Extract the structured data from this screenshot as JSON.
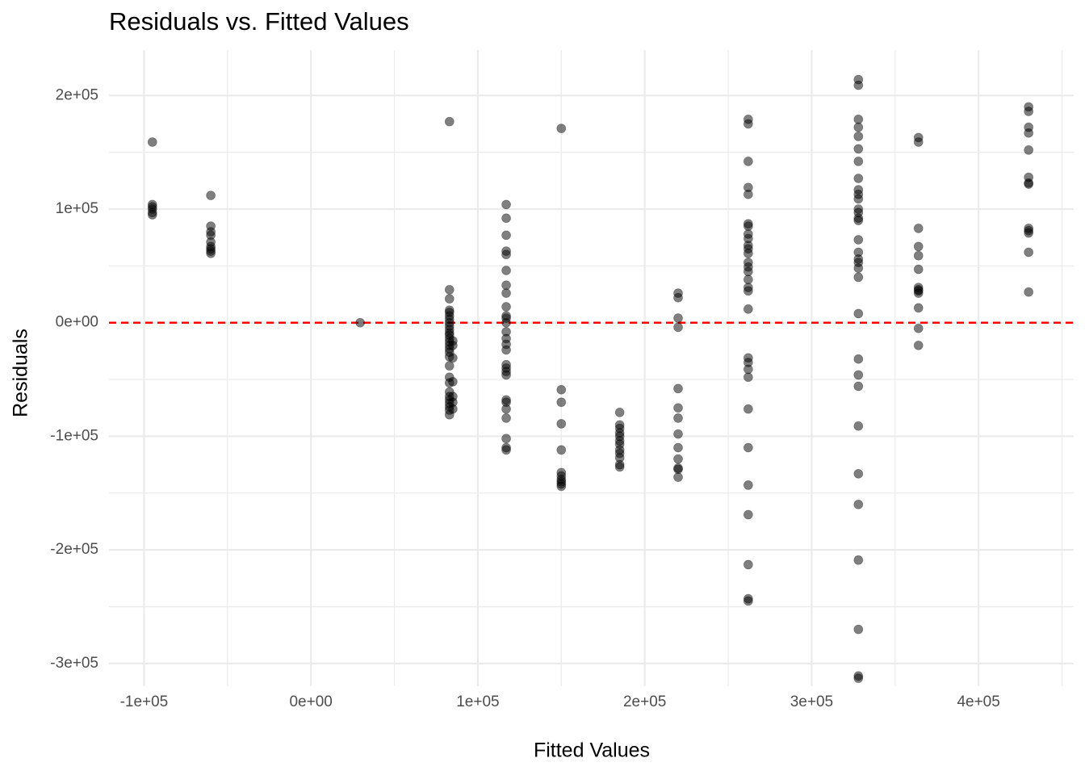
{
  "chart_data": {
    "type": "scatter",
    "title": "Residuals vs. Fitted Values",
    "x_label": "Fitted Values",
    "y_label": "Residuals",
    "color": "#000000",
    "opacity": 0.5,
    "grid": true,
    "xlim": [
      -121000,
      457000
    ],
    "ylim": [
      -320000,
      240000
    ],
    "xticks": [
      {
        "value": -100000,
        "label": "-1e+05"
      },
      {
        "value": 0,
        "label": "0e+00"
      },
      {
        "value": 100000,
        "label": "1e+05"
      },
      {
        "value": 200000,
        "label": "2e+05"
      },
      {
        "value": 300000,
        "label": "3e+05"
      },
      {
        "value": 400000,
        "label": "4e+05"
      }
    ],
    "yticks": [
      {
        "value": -300000,
        "label": "-3e+05"
      },
      {
        "value": -200000,
        "label": "-2e+05"
      },
      {
        "value": -100000,
        "label": "-1e+05"
      },
      {
        "value": 0,
        "label": "0e+00"
      },
      {
        "value": 100000,
        "label": "1e+05"
      },
      {
        "value": 200000,
        "label": "2e+05"
      }
    ],
    "x_minor_ticks": [
      -50000,
      50000,
      150000,
      250000,
      350000,
      450000
    ],
    "y_minor_ticks": [
      -250000,
      -150000,
      -50000,
      50000,
      150000
    ],
    "hline": {
      "y": 0,
      "color": "#ff0000",
      "linestyle": "dashed"
    },
    "x": [
      -95000,
      -95000,
      -95000,
      -95000,
      -95000,
      -95000,
      -60000,
      -60000,
      -60000,
      -60000,
      -60000,
      -60000,
      -60000,
      -60000,
      -60000,
      29500,
      83000,
      83000,
      83000,
      83000,
      83000,
      83000,
      83000,
      83000,
      83000,
      83000,
      83000,
      83000,
      83000,
      83000,
      83000,
      83000,
      83000,
      83000,
      83000,
      83000,
      83000,
      83000,
      83000,
      83000,
      83000,
      83000,
      83000,
      83000,
      85000,
      85000,
      85000,
      85000,
      85000,
      85000,
      85000,
      117000,
      117000,
      117000,
      117000,
      117000,
      117000,
      117000,
      117000,
      117000,
      117000,
      117000,
      117000,
      117000,
      117000,
      117000,
      117000,
      117000,
      117000,
      117000,
      117000,
      117000,
      117000,
      117000,
      117000,
      117000,
      117000,
      117000,
      150000,
      150000,
      150000,
      150000,
      150000,
      150000,
      150000,
      150000,
      150000,
      150000,
      150000,
      185000,
      185000,
      185000,
      185000,
      185000,
      185000,
      185000,
      185000,
      185000,
      185000,
      185000,
      185000,
      220000,
      220000,
      220000,
      220000,
      220000,
      220000,
      220000,
      220000,
      220000,
      220000,
      220000,
      220000,
      220000,
      262000,
      262000,
      262000,
      262000,
      262000,
      262000,
      262000,
      262000,
      262000,
      262000,
      262000,
      262000,
      262000,
      262000,
      262000,
      262000,
      262000,
      262000,
      262000,
      262000,
      262000,
      262000,
      262000,
      262000,
      262000,
      262000,
      262000,
      262000,
      262000,
      262000,
      328000,
      328000,
      328000,
      328000,
      328000,
      328000,
      328000,
      328000,
      328000,
      328000,
      328000,
      328000,
      328000,
      328000,
      328000,
      328000,
      328000,
      328000,
      328000,
      328000,
      328000,
      328000,
      328000,
      328000,
      328000,
      328000,
      328000,
      328000,
      328000,
      328000,
      328000,
      328000,
      364000,
      364000,
      364000,
      364000,
      364000,
      364000,
      364000,
      364000,
      364000,
      364000,
      364000,
      364000,
      364000,
      430000,
      430000,
      430000,
      430000,
      430000,
      430000,
      430000,
      430000,
      430000,
      430000,
      430000,
      430000,
      430000
    ],
    "values": [
      159000,
      104000,
      102000,
      100000,
      97000,
      95000,
      112000,
      85000,
      80000,
      77000,
      71000,
      67000,
      65000,
      63000,
      61000,
      0,
      177000,
      29000,
      21000,
      11000,
      9000,
      6000,
      3000,
      0,
      -3000,
      -6000,
      -9000,
      -11000,
      -14000,
      -17000,
      -20000,
      -23000,
      -26000,
      -30000,
      -38000,
      -48000,
      -53000,
      -61000,
      -65000,
      -68000,
      -71000,
      -74000,
      -77000,
      -81000,
      -16000,
      -20000,
      -31000,
      -52000,
      -65000,
      -70000,
      -76000,
      104000,
      92000,
      77000,
      63000,
      60000,
      46000,
      33000,
      26000,
      14000,
      6000,
      4000,
      0,
      -8000,
      -14000,
      -19000,
      -24000,
      -37000,
      -40000,
      -43000,
      -46000,
      -68000,
      -70000,
      -76000,
      -84000,
      -102000,
      -110000,
      -112000,
      171000,
      -59000,
      -70000,
      -89000,
      -112000,
      -132000,
      -135000,
      -138000,
      -140000,
      -142000,
      -144000,
      -79000,
      -90000,
      -93000,
      -97000,
      -100000,
      -104000,
      -107000,
      -112000,
      -115000,
      -119000,
      -125000,
      -127000,
      26000,
      22000,
      4000,
      -4000,
      -58000,
      -75000,
      -84000,
      -98000,
      -110000,
      -120000,
      -128000,
      -129000,
      -136000,
      179000,
      175000,
      142000,
      119000,
      113000,
      87000,
      85000,
      78000,
      74000,
      68000,
      65000,
      61000,
      53000,
      49000,
      45000,
      38000,
      31000,
      28000,
      12000,
      -31000,
      -35000,
      -41000,
      -48000,
      -76000,
      -110000,
      -143000,
      -169000,
      -213000,
      -243000,
      -245000,
      214000,
      209000,
      179000,
      172000,
      164000,
      153000,
      142000,
      127000,
      117000,
      113000,
      109000,
      100000,
      97000,
      92000,
      90000,
      73000,
      62000,
      56000,
      53000,
      48000,
      40000,
      8000,
      -32000,
      -46000,
      -56000,
      -91000,
      -133000,
      -160000,
      -209000,
      -270000,
      -311000,
      -313000,
      163000,
      159000,
      83000,
      67000,
      59000,
      47000,
      31000,
      29000,
      28000,
      26000,
      13000,
      -5000,
      -20000,
      190000,
      186000,
      172000,
      167000,
      152000,
      128000,
      123000,
      122000,
      83000,
      81000,
      79000,
      62000,
      27000
    ]
  }
}
